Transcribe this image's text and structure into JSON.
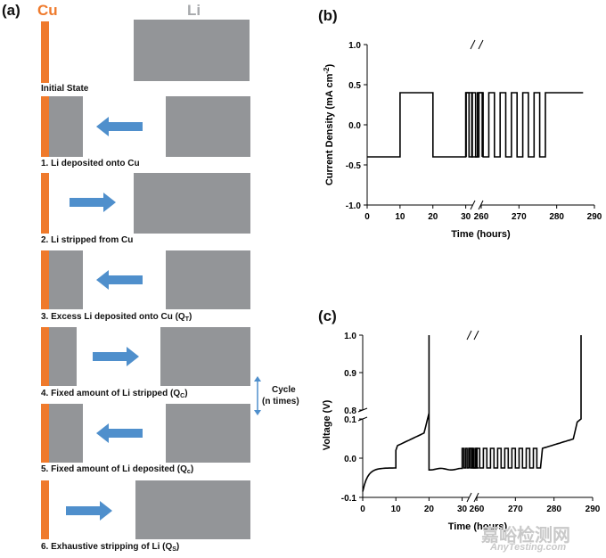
{
  "panel_a": {
    "tag": "(a)",
    "cu_label": "Cu",
    "li_label": "Li",
    "steps": [
      {
        "label": "Initial State",
        "sub": "",
        "tail": ""
      },
      {
        "label": "1. Li deposited onto Cu",
        "sub": "",
        "tail": ""
      },
      {
        "label": "2. Li stripped from Cu",
        "sub": "",
        "tail": ""
      },
      {
        "label": "3. Excess Li deposited onto Cu (Q",
        "sub": "T",
        "tail": ")"
      },
      {
        "label": "4. Fixed amount of Li stripped (Q",
        "sub": "C",
        "tail": ")"
      },
      {
        "label": "5. Fixed amount of Li deposited (Q",
        "sub": "c",
        "tail": ")"
      },
      {
        "label": "6. Exhaustive stripping of Li (Q",
        "sub": "S",
        "tail": ")"
      }
    ],
    "cycle_label_1": "Cycle",
    "cycle_label_2": "(n times)",
    "colors": {
      "cu": "#ef7a2c",
      "li": "#939598",
      "arrow": "#4f8fcc"
    }
  },
  "chart_data": [
    {
      "panel": "(b)",
      "type": "line",
      "xlabel": "Time (hours)",
      "ylabel": "Current Density (mA cm-2)",
      "ylabel_main": "Current Density (mA cm",
      "ylabel_sup": "-2",
      "ylabel_tail": ")",
      "x_ticks": [
        "0",
        "10",
        "20",
        "30",
        "260",
        "270",
        "280",
        "290"
      ],
      "y_ticks": [
        "-1.0",
        "-0.5",
        "0.0",
        "0.5",
        "1.0"
      ],
      "ylim": [
        -1.0,
        1.0
      ],
      "x_axis_break": "between 30 and 260",
      "series": [
        {
          "name": "current",
          "points": [
            [
              0,
              -0.4
            ],
            [
              10,
              -0.4
            ],
            [
              10,
              0.4
            ],
            [
              20,
              0.4
            ],
            [
              20,
              -0.4
            ],
            [
              30,
              -0.4
            ],
            [
              30,
              0.4
            ],
            [
              31,
              0.4
            ],
            [
              31,
              -0.4
            ],
            [
              32,
              -0.4
            ],
            [
              32,
              0.4
            ],
            [
              33,
              0.4
            ],
            [
              33,
              -0.4
            ],
            [
              34,
              -0.4
            ],
            [
              34,
              0.4
            ],
            [
              35,
              0.4
            ],
            [
              35,
              -0.4
            ],
            [
              256,
              -0.4
            ],
            [
              256,
              0.4
            ],
            [
              257.5,
              0.4
            ],
            [
              257.5,
              -0.4
            ],
            [
              259,
              -0.4
            ],
            [
              259,
              0.4
            ],
            [
              260.5,
              0.4
            ],
            [
              260.5,
              -0.4
            ],
            [
              262,
              -0.4
            ],
            [
              262,
              0.4
            ],
            [
              263.5,
              0.4
            ],
            [
              263.5,
              -0.4
            ],
            [
              265,
              -0.4
            ],
            [
              265,
              0.4
            ],
            [
              266.5,
              0.4
            ],
            [
              266.5,
              -0.4
            ],
            [
              268,
              -0.4
            ],
            [
              268,
              0.4
            ],
            [
              269.5,
              0.4
            ],
            [
              269.5,
              -0.4
            ],
            [
              271,
              -0.4
            ],
            [
              271,
              0.4
            ],
            [
              272.5,
              0.4
            ],
            [
              272.5,
              -0.4
            ],
            [
              274,
              -0.4
            ],
            [
              274,
              0.4
            ],
            [
              275.5,
              0.4
            ],
            [
              275.5,
              -0.4
            ],
            [
              277,
              -0.4
            ],
            [
              277,
              0.4
            ],
            [
              287,
              0.4
            ]
          ]
        }
      ]
    },
    {
      "panel": "(c)",
      "type": "line",
      "xlabel": "Time (hours)",
      "ylabel": "Voltage (V)",
      "x_ticks": [
        "0",
        "10",
        "20",
        "30",
        "260",
        "270",
        "280",
        "290"
      ],
      "y_ticks_upper": [
        "0.8",
        "0.9",
        "1.0"
      ],
      "y_ticks_lower": [
        "-0.1",
        "0.0",
        "0.1"
      ],
      "y_axis_break": "between 0.1 and 0.8",
      "x_axis_break": "between 30 and 260",
      "series": [
        {
          "name": "voltage",
          "description": "Li-Cu cell voltage profile"
        }
      ]
    }
  ],
  "watermark": {
    "line1": "嘉峪检测网",
    "line2": "AnyTesting.com"
  }
}
